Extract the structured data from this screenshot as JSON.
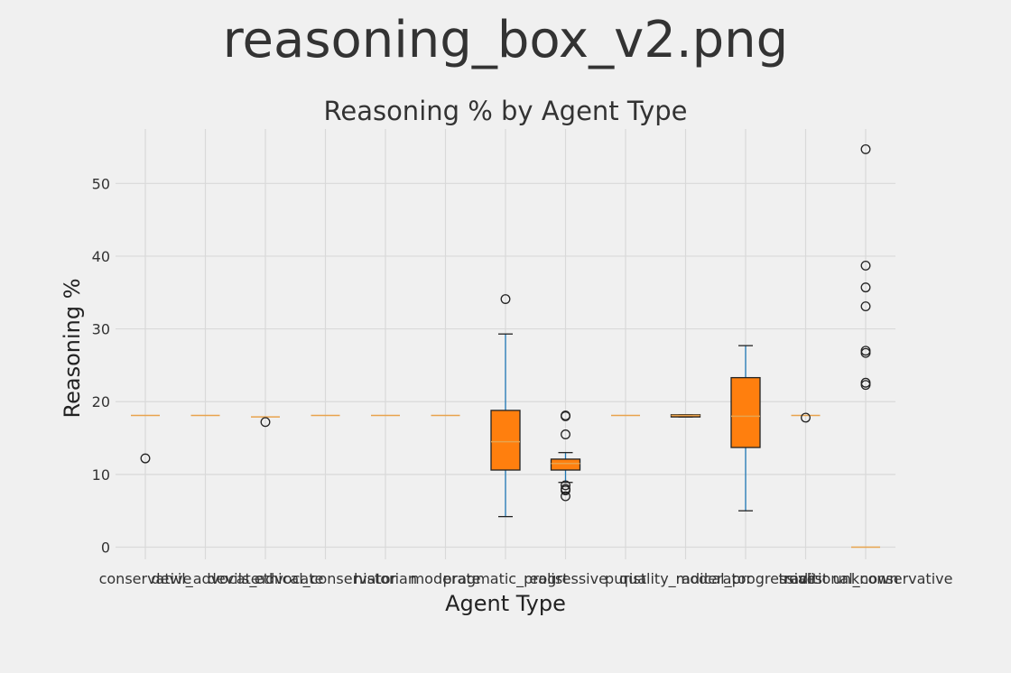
{
  "file_title": "reasoning_box_v2.png",
  "chart_data": {
    "type": "box",
    "title": "Reasoning % by Agent Type",
    "xlabel": "Agent Type",
    "ylabel": "Reasoning %",
    "ylim": [
      -2,
      58
    ],
    "yticks": [
      0,
      10,
      20,
      30,
      40,
      50
    ],
    "grid": true,
    "colors": {
      "box_fill": "#ff7f0e",
      "whisker": "#1f77b4",
      "median": "#e8a34d",
      "grid": "#d9d9d9",
      "background": "#f0f0f0"
    },
    "categories": [
      "conservative",
      "devil_advocate",
      "devils_advocate",
      "ethical_conservator",
      "historian",
      "moderate",
      "pragmatic_realist",
      "progressive",
      "purist",
      "quality_moderator",
      "radical_progressive",
      "realist",
      "traditional_conservative",
      "unknown"
    ],
    "boxes": [
      {
        "name": "conservative",
        "min": 18.1,
        "q1": 18.1,
        "median": 18.1,
        "q3": 18.1,
        "max": 18.1,
        "outliers": [
          12.2
        ]
      },
      {
        "name": "devil_advocate",
        "min": 18.1,
        "q1": 18.1,
        "median": 18.1,
        "q3": 18.1,
        "max": 18.1,
        "outliers": []
      },
      {
        "name": "devils_advocate",
        "min": 17.9,
        "q1": 17.9,
        "median": 17.9,
        "q3": 17.9,
        "max": 17.9,
        "outliers": [
          17.2
        ]
      },
      {
        "name": "ethical_conservator",
        "min": 18.1,
        "q1": 18.1,
        "median": 18.1,
        "q3": 18.1,
        "max": 18.1,
        "outliers": []
      },
      {
        "name": "historian",
        "min": 18.1,
        "q1": 18.1,
        "median": 18.1,
        "q3": 18.1,
        "max": 18.1,
        "outliers": []
      },
      {
        "name": "moderate",
        "min": 18.1,
        "q1": 18.1,
        "median": 18.1,
        "q3": 18.1,
        "max": 18.1,
        "outliers": []
      },
      {
        "name": "pragmatic_realist",
        "min": 4.2,
        "q1": 10.6,
        "median": 14.5,
        "q3": 18.8,
        "max": 29.3,
        "outliers": [
          34.1
        ]
      },
      {
        "name": "progressive",
        "min": 8.9,
        "q1": 10.6,
        "median": 11.5,
        "q3": 12.1,
        "max": 13.0,
        "outliers": [
          18.1,
          18.0,
          15.5,
          8.5,
          8.0,
          7.8,
          7.0
        ]
      },
      {
        "name": "purist",
        "min": 18.1,
        "q1": 18.1,
        "median": 18.1,
        "q3": 18.1,
        "max": 18.1,
        "outliers": []
      },
      {
        "name": "quality_moderator",
        "min": 17.9,
        "q1": 17.9,
        "median": 18.1,
        "q3": 18.2,
        "max": 18.2,
        "outliers": []
      },
      {
        "name": "radical_progressive",
        "min": 5.0,
        "q1": 13.7,
        "median": 18.0,
        "q3": 23.3,
        "max": 27.7,
        "outliers": []
      },
      {
        "name": "realist",
        "min": 18.1,
        "q1": 18.1,
        "median": 18.1,
        "q3": 18.1,
        "max": 18.1,
        "outliers": [
          17.8
        ]
      },
      {
        "name": "traditional_conservative",
        "min": 0,
        "q1": 0,
        "median": 0,
        "q3": 0,
        "max": 0,
        "outliers": [
          54.7,
          38.7,
          35.7,
          33.1,
          27.0,
          26.7,
          22.6,
          22.3
        ]
      },
      {
        "name": "unknown",
        "min": null,
        "q1": null,
        "median": null,
        "q3": null,
        "max": null,
        "outliers": []
      }
    ]
  }
}
